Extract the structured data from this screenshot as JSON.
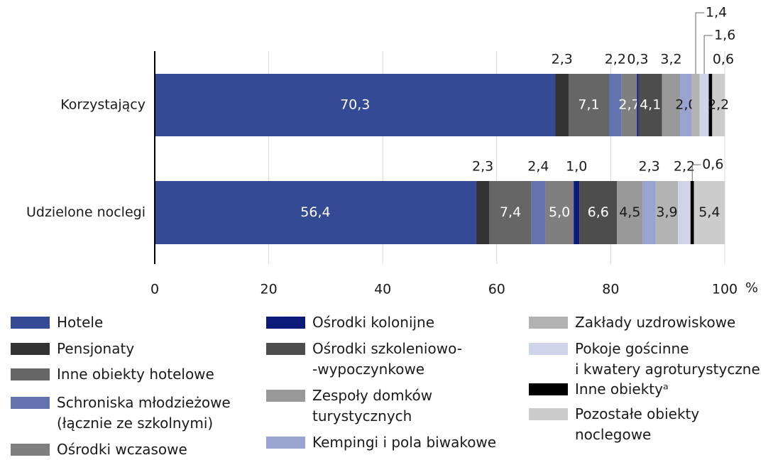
{
  "chart_data": {
    "type": "stacked_bar_horizontal",
    "categories": [
      "Korzystający",
      "Udzielone noclegi"
    ],
    "series": [
      {
        "name": "Hotele",
        "color": "#344a94",
        "values": [
          70.3,
          56.4
        ],
        "value_labels": [
          "70,3",
          "56,4"
        ]
      },
      {
        "name": "Pensjonaty",
        "color": "#333333",
        "values": [
          2.3,
          2.3
        ],
        "value_labels": [
          "2,3",
          "2,3"
        ]
      },
      {
        "name": "Inne obiekty hotelowe",
        "color": "#666666",
        "values": [
          7.1,
          7.4
        ],
        "value_labels": [
          "7,1",
          "7,4"
        ]
      },
      {
        "name": "Schroniska młodzieżowe\n(łącznie ze szkolnymi)",
        "color": "#6273b0",
        "values": [
          2.2,
          2.4
        ],
        "value_labels": [
          "2,2",
          "2,4"
        ]
      },
      {
        "name": "Ośrodki wczasowe",
        "color": "#7f7f7f",
        "values": [
          2.7,
          5.0
        ],
        "value_labels": [
          "2,7",
          "5,0"
        ]
      },
      {
        "name": "Ośrodki kolonijne",
        "color": "#0c1a7a",
        "values": [
          0.3,
          1.0
        ],
        "value_labels": [
          "0,3",
          "1,0"
        ]
      },
      {
        "name": "Ośrodki szkoleniowo-\n-wypoczynkowe",
        "color": "#4d4d4d",
        "values": [
          4.1,
          6.6
        ],
        "value_labels": [
          "4,1",
          "6,6"
        ]
      },
      {
        "name": "Zespoły domków\nturystycznych",
        "color": "#999999",
        "values": [
          3.2,
          4.5
        ],
        "value_labels": [
          "3,2",
          "4,5"
        ]
      },
      {
        "name": "Kempingi i pola biwakowe",
        "color": "#98a3cf",
        "values": [
          2.0,
          2.3
        ],
        "value_labels": [
          "2,0",
          "2,3"
        ]
      },
      {
        "name": "Zakłady uzdrowiskowe",
        "color": "#b3b3b3",
        "values": [
          1.4,
          3.9
        ],
        "value_labels": [
          "1,4",
          "3,9"
        ]
      },
      {
        "name": "Pokoje gościnne\ni kwatery agroturystyczne",
        "color": "#cfd4ea",
        "values": [
          1.6,
          2.2
        ],
        "value_labels": [
          "1,6",
          "2,2"
        ]
      },
      {
        "name": "Inne obiektyᵃ",
        "color": "#000000",
        "values": [
          0.6,
          0.6
        ],
        "value_labels": [
          "0,6",
          "0,6"
        ]
      },
      {
        "name": "Pozostałe obiekty\nnoclegowe",
        "color": "#cccccc",
        "values": [
          2.2,
          5.4
        ],
        "value_labels": [
          "2,2",
          "5,4"
        ]
      }
    ],
    "xlim": [
      0,
      100
    ],
    "xticks": [
      0,
      20,
      40,
      60,
      80,
      100
    ],
    "x_unit": "%",
    "grid": true
  }
}
